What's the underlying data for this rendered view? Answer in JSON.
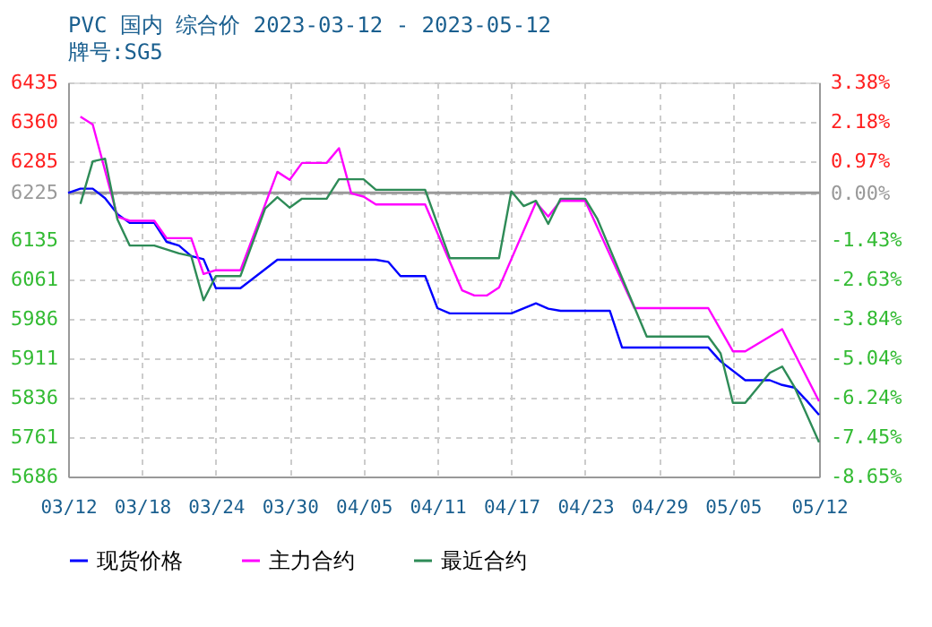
{
  "chart_data": {
    "type": "line",
    "title": "PVC 国内 综合价 2023-03-12 - 2023-05-12",
    "subtitle": "牌号:SG5",
    "xlim": [
      "2023-03-12",
      "2023-05-12"
    ],
    "xticks": [
      {
        "value": "2023-03-12",
        "label": "03/12"
      },
      {
        "value": "2023-03-18",
        "label": "03/18"
      },
      {
        "value": "2023-03-24",
        "label": "03/24"
      },
      {
        "value": "2023-03-30",
        "label": "03/30"
      },
      {
        "value": "2023-04-05",
        "label": "04/05"
      },
      {
        "value": "2023-04-11",
        "label": "04/11"
      },
      {
        "value": "2023-04-17",
        "label": "04/17"
      },
      {
        "value": "2023-04-23",
        "label": "04/23"
      },
      {
        "value": "2023-04-29",
        "label": "04/29"
      },
      {
        "value": "2023-05-05",
        "label": "05/05"
      },
      {
        "value": "2023-05-12",
        "label": "05/12"
      }
    ],
    "ylim": [
      5686,
      6435
    ],
    "yticks": [
      6435,
      6360,
      6285,
      6225,
      6135,
      6061,
      5986,
      5911,
      5836,
      5761,
      5686
    ],
    "y2lim": [
      -8.65,
      3.38
    ],
    "y2ticks": [
      {
        "value": 3.38,
        "label": "3.38%"
      },
      {
        "value": 2.18,
        "label": "2.18%"
      },
      {
        "value": 0.97,
        "label": "0.97%"
      },
      {
        "value": 0,
        "label": "0.00%"
      },
      {
        "value": -1.43,
        "label": "-1.43%"
      },
      {
        "value": -2.63,
        "label": "-2.63%"
      },
      {
        "value": -3.84,
        "label": "-3.84%"
      },
      {
        "value": -5.04,
        "label": "-5.04%"
      },
      {
        "value": -6.24,
        "label": "-6.24%"
      },
      {
        "value": -7.45,
        "label": "-7.45%"
      },
      {
        "value": -8.65,
        "label": "-8.65%"
      }
    ],
    "ref_lines": [
      {
        "axis": "y",
        "value": 6225,
        "color": "#999999",
        "line_style": "solid"
      }
    ],
    "grid": true,
    "legend": "bottom",
    "marker": "none",
    "line_style": "solid",
    "series": [
      {
        "name": "现货价格",
        "color": "#0000ff",
        "x": [
          "2023-03-12",
          "2023-03-13",
          "2023-03-14",
          "2023-03-15",
          "2023-03-16",
          "2023-03-17",
          "2023-03-19",
          "2023-03-20",
          "2023-03-21",
          "2023-03-22",
          "2023-03-23",
          "2023-03-24",
          "2023-03-26",
          "2023-03-29",
          "2023-04-06",
          "2023-04-07",
          "2023-04-08",
          "2023-04-10",
          "2023-04-11",
          "2023-04-12",
          "2023-04-17",
          "2023-04-19",
          "2023-04-20",
          "2023-04-21",
          "2023-04-25",
          "2023-04-26",
          "2023-05-03",
          "2023-05-04",
          "2023-05-06",
          "2023-05-08",
          "2023-05-09",
          "2023-05-10",
          "2023-05-11",
          "2023-05-12"
        ],
        "values": [
          6225,
          6233,
          6233,
          6215,
          6185,
          6168,
          6168,
          6132,
          6125,
          6105,
          6099,
          6044,
          6044,
          6098,
          6098,
          6094,
          6067,
          6067,
          6006,
          5996,
          5996,
          6015,
          6005,
          6001,
          6001,
          5931,
          5931,
          5905,
          5869,
          5869,
          5860,
          5855,
          5830,
          5803
        ]
      },
      {
        "name": "主力合约",
        "color": "#ff00ff",
        "x": [
          "2023-03-13",
          "2023-03-14",
          "2023-03-16",
          "2023-03-17",
          "2023-03-19",
          "2023-03-20",
          "2023-03-22",
          "2023-03-23",
          "2023-03-24",
          "2023-03-26",
          "2023-03-29",
          "2023-03-30",
          "2023-03-31",
          "2023-04-02",
          "2023-04-03",
          "2023-04-04",
          "2023-04-05",
          "2023-04-06",
          "2023-04-10",
          "2023-04-13",
          "2023-04-14",
          "2023-04-15",
          "2023-04-16",
          "2023-04-19",
          "2023-04-20",
          "2023-04-21",
          "2023-04-23",
          "2023-04-27",
          "2023-05-03",
          "2023-05-05",
          "2023-05-06",
          "2023-05-08",
          "2023-05-09",
          "2023-05-12"
        ],
        "values": [
          6370,
          6355,
          6180,
          6172,
          6172,
          6139,
          6139,
          6071,
          6078,
          6078,
          6265,
          6250,
          6282,
          6282,
          6310,
          6224,
          6218,
          6203,
          6203,
          6040,
          6030,
          6030,
          6045,
          6207,
          6180,
          6210,
          6210,
          6006,
          6006,
          5924,
          5924,
          5952,
          5966,
          5829
        ]
      },
      {
        "name": "最近合约",
        "color": "#2e8b57",
        "x": [
          "2023-03-13",
          "2023-03-14",
          "2023-03-15",
          "2023-03-16",
          "2023-03-17",
          "2023-03-19",
          "2023-03-21",
          "2023-03-22",
          "2023-03-23",
          "2023-03-24",
          "2023-03-26",
          "2023-03-28",
          "2023-03-29",
          "2023-03-30",
          "2023-03-31",
          "2023-04-02",
          "2023-04-03",
          "2023-04-05",
          "2023-04-06",
          "2023-04-10",
          "2023-04-12",
          "2023-04-16",
          "2023-04-17",
          "2023-04-18",
          "2023-04-19",
          "2023-04-20",
          "2023-04-21",
          "2023-04-23",
          "2023-04-24",
          "2023-04-28",
          "2023-05-03",
          "2023-05-04",
          "2023-05-05",
          "2023-05-06",
          "2023-05-08",
          "2023-05-09",
          "2023-05-10",
          "2023-05-12"
        ],
        "values": [
          6204,
          6285,
          6290,
          6175,
          6125,
          6125,
          6110,
          6105,
          6021,
          6067,
          6067,
          6195,
          6217,
          6197,
          6214,
          6214,
          6251,
          6251,
          6231,
          6231,
          6101,
          6101,
          6228,
          6200,
          6210,
          6166,
          6214,
          6214,
          6175,
          5952,
          5952,
          5920,
          5826,
          5826,
          5883,
          5895,
          5856,
          5751
        ]
      }
    ]
  }
}
